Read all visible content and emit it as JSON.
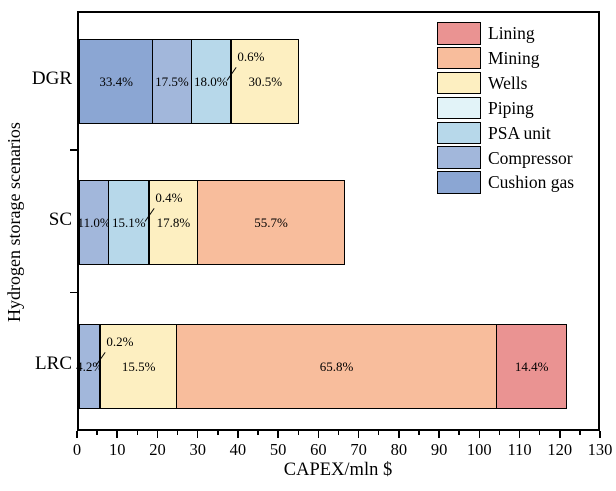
{
  "chart_data": {
    "type": "bar",
    "orientation": "horizontal",
    "stacked": true,
    "title": "",
    "xlabel": "CAPEX/mln $",
    "ylabel": "Hydrogen storage scenarios",
    "xlim": [
      0,
      130
    ],
    "xticks": [
      0,
      10,
      20,
      30,
      40,
      50,
      60,
      70,
      80,
      90,
      100,
      110,
      120,
      130
    ],
    "xtick_minor_step": 5,
    "grid": false,
    "legend_position": "top-right-inside",
    "categories": [
      "DGR",
      "SC",
      "LRC"
    ],
    "bar_totals_mln": [
      54.5,
      66,
      121
    ],
    "series": [
      {
        "name": "Cushion gas",
        "color": "#8BA6D3",
        "percent_by_category": [
          33.4,
          0,
          0
        ]
      },
      {
        "name": "Compressor",
        "color": "#A2B7DB",
        "percent_by_category": [
          17.5,
          11.0,
          4.2
        ]
      },
      {
        "name": "PSA unit",
        "color": "#B7D8EA",
        "percent_by_category": [
          18.0,
          15.1,
          0
        ]
      },
      {
        "name": "Piping",
        "color": "#E2F3F8",
        "percent_by_category": [
          0.6,
          0.4,
          0.2
        ]
      },
      {
        "name": "Wells",
        "color": "#FDEFC1",
        "percent_by_category": [
          30.5,
          17.8,
          15.5
        ]
      },
      {
        "name": "Mining",
        "color": "#F8BD9C",
        "percent_by_category": [
          0,
          55.7,
          65.8
        ]
      },
      {
        "name": "Lining",
        "color": "#EA9392",
        "percent_by_category": [
          0,
          0,
          14.4
        ]
      }
    ],
    "legend_order": [
      "Lining",
      "Mining",
      "Wells",
      "Piping",
      "PSA unit",
      "Compressor",
      "Cushion gas"
    ],
    "axis_color": "#000000",
    "background_color": "#FFFFFF"
  }
}
